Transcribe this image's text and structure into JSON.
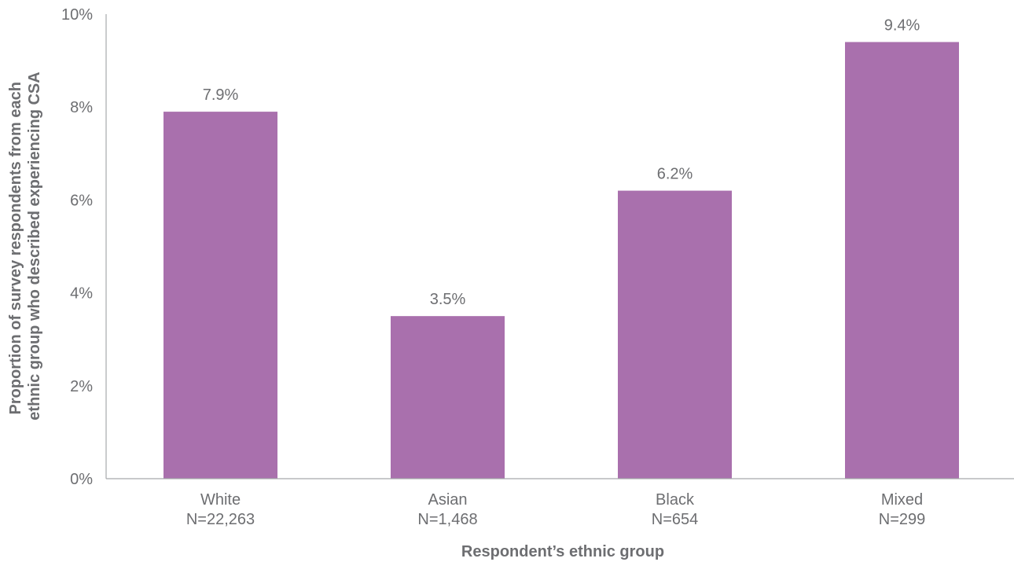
{
  "chart_data": {
    "type": "bar",
    "categories": [
      "White",
      "Asian",
      "Black",
      "Mixed"
    ],
    "category_sublabels": [
      "N=22,263",
      "N=1,468",
      "N=654",
      "N=299"
    ],
    "values": [
      7.9,
      3.5,
      6.2,
      9.4
    ],
    "data_labels": [
      "7.9%",
      "3.5%",
      "6.2%",
      "9.4%"
    ],
    "xlabel": "Respondent’s ethnic group",
    "ylabel_lines": [
      "Proportion of survey respondents from each",
      "ethnic group who described experiencing CSA"
    ],
    "ylim": [
      0,
      10
    ],
    "yticks": [
      0,
      2,
      4,
      6,
      8,
      10
    ],
    "ytick_labels": [
      "0%",
      "2%",
      "4%",
      "6%",
      "8%",
      "10%"
    ],
    "bar_color": "#a970ad",
    "axis_color": "#a7a9ac",
    "text_color": "#6d6e71",
    "grid": false,
    "legend": "none"
  }
}
